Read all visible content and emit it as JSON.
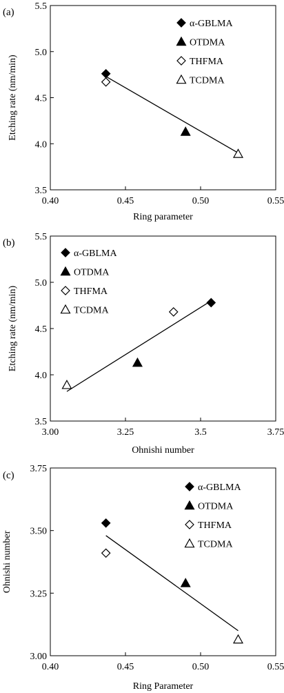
{
  "chart_data": [
    {
      "panel_label": "(a)",
      "type": "scatter",
      "xlabel": "Ring parameter",
      "ylabel": "Etching rate (nm/min)",
      "xlim": [
        0.4,
        0.55
      ],
      "ylim": [
        3.5,
        5.5
      ],
      "xticks": [
        "0.40",
        "0.45",
        "0.50",
        "0.55"
      ],
      "yticks": [
        "3.5",
        "4.0",
        "4.5",
        "5.0",
        "5.5"
      ],
      "legend_position": "top-right",
      "series": [
        {
          "name": "α-GBLMA",
          "marker": "diamond-filled",
          "points": [
            [
              0.437,
              4.76
            ]
          ]
        },
        {
          "name": "OTDMA",
          "marker": "triangle-filled",
          "points": [
            [
              0.49,
              4.13
            ]
          ]
        },
        {
          "name": "THFMA",
          "marker": "diamond-open",
          "points": [
            [
              0.437,
              4.67
            ]
          ]
        },
        {
          "name": "TCDMA",
          "marker": "triangle-open",
          "points": [
            [
              0.525,
              3.89
            ]
          ]
        }
      ],
      "fit_line": [
        [
          0.437,
          4.73
        ],
        [
          0.525,
          3.9
        ]
      ]
    },
    {
      "panel_label": "(b)",
      "type": "scatter",
      "xlabel": "Ohnishi number",
      "ylabel": "Etching rate (nm/min)",
      "xlim": [
        3.0,
        3.75
      ],
      "ylim": [
        3.5,
        5.5
      ],
      "xticks": [
        "3.00",
        "3.25",
        "3.5",
        "3.75"
      ],
      "yticks": [
        "3.5",
        "4.0",
        "4.5",
        "5.0",
        "5.5"
      ],
      "legend_position": "top-left",
      "series": [
        {
          "name": "α-GBLMA",
          "marker": "diamond-filled",
          "points": [
            [
              3.535,
              4.78
            ]
          ]
        },
        {
          "name": "OTDMA",
          "marker": "triangle-filled",
          "points": [
            [
              3.29,
              4.13
            ]
          ]
        },
        {
          "name": "THFMA",
          "marker": "diamond-open",
          "points": [
            [
              3.41,
              4.68
            ]
          ]
        },
        {
          "name": "TCDMA",
          "marker": "triangle-open",
          "points": [
            [
              3.055,
              3.89
            ]
          ]
        }
      ],
      "fit_line": [
        [
          3.055,
          3.82
        ],
        [
          3.535,
          4.8
        ]
      ]
    },
    {
      "panel_label": "(c)",
      "type": "scatter",
      "xlabel": "Ring Parameter",
      "ylabel": "Ohnishi number",
      "xlim": [
        0.4,
        0.55
      ],
      "ylim": [
        3.0,
        3.75
      ],
      "xticks": [
        "0.40",
        "0.45",
        "0.50",
        "0.55"
      ],
      "yticks": [
        "3.00",
        "3.25",
        "3.50",
        "3.75"
      ],
      "legend_position": "top-right",
      "series": [
        {
          "name": "α-GBLMA",
          "marker": "diamond-filled",
          "points": [
            [
              0.437,
              3.53
            ]
          ]
        },
        {
          "name": "OTDMA",
          "marker": "triangle-filled",
          "points": [
            [
              0.49,
              3.29
            ]
          ]
        },
        {
          "name": "THFMA",
          "marker": "diamond-open",
          "points": [
            [
              0.437,
              3.41
            ]
          ]
        },
        {
          "name": "TCDMA",
          "marker": "triangle-open",
          "points": [
            [
              0.525,
              3.065
            ]
          ]
        }
      ],
      "fit_line": [
        [
          0.437,
          3.48
        ],
        [
          0.525,
          3.1
        ]
      ]
    }
  ]
}
